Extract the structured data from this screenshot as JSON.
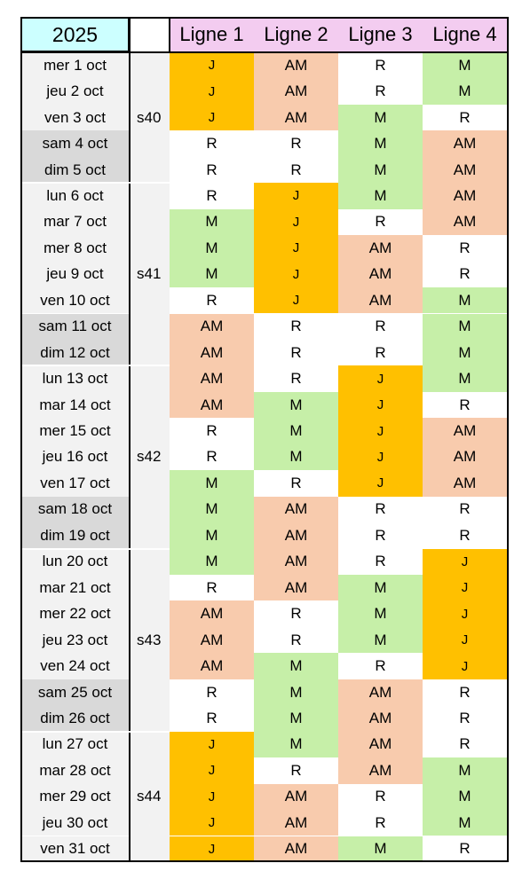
{
  "year": "2025",
  "lines": [
    "Ligne 1",
    "Ligne 2",
    "Ligne 3",
    "Ligne 4"
  ],
  "colors": {
    "J": "#ffc000",
    "AM": "#f8cbad",
    "M": "#c6efa8",
    "R": "#ffffff",
    "year_bg": "#ccffff",
    "line_header_bg": "#f3ccf0",
    "weekday_bg": "#f2f2f2",
    "weekend_bg": "#d9d9d9"
  },
  "weeks": [
    {
      "label": "s40",
      "start": 0,
      "end": 4
    },
    {
      "label": "s41",
      "start": 5,
      "end": 11
    },
    {
      "label": "s42",
      "start": 12,
      "end": 18
    },
    {
      "label": "s43",
      "start": 19,
      "end": 25
    },
    {
      "label": "s44",
      "start": 26,
      "end": 30
    }
  ],
  "rows": [
    {
      "date": "mer 1 oct",
      "weekend": false,
      "values": [
        "J",
        "AM",
        "R",
        "M"
      ]
    },
    {
      "date": "jeu 2 oct",
      "weekend": false,
      "values": [
        "J",
        "AM",
        "R",
        "M"
      ]
    },
    {
      "date": "ven 3 oct",
      "weekend": false,
      "values": [
        "J",
        "AM",
        "M",
        "R"
      ]
    },
    {
      "date": "sam 4 oct",
      "weekend": true,
      "values": [
        "R",
        "R",
        "M",
        "AM"
      ]
    },
    {
      "date": "dim 5 oct",
      "weekend": true,
      "values": [
        "R",
        "R",
        "M",
        "AM"
      ]
    },
    {
      "date": "lun 6 oct",
      "weekend": false,
      "values": [
        "R",
        "J",
        "M",
        "AM"
      ]
    },
    {
      "date": "mar 7 oct",
      "weekend": false,
      "values": [
        "M",
        "J",
        "R",
        "AM"
      ]
    },
    {
      "date": "mer 8 oct",
      "weekend": false,
      "values": [
        "M",
        "J",
        "AM",
        "R"
      ]
    },
    {
      "date": "jeu 9 oct",
      "weekend": false,
      "values": [
        "M",
        "J",
        "AM",
        "R"
      ]
    },
    {
      "date": "ven 10 oct",
      "weekend": false,
      "values": [
        "R",
        "J",
        "AM",
        "M"
      ]
    },
    {
      "date": "sam 11 oct",
      "weekend": true,
      "values": [
        "AM",
        "R",
        "R",
        "M"
      ]
    },
    {
      "date": "dim 12 oct",
      "weekend": true,
      "values": [
        "AM",
        "R",
        "R",
        "M"
      ]
    },
    {
      "date": "lun 13 oct",
      "weekend": false,
      "values": [
        "AM",
        "R",
        "J",
        "M"
      ]
    },
    {
      "date": "mar 14 oct",
      "weekend": false,
      "values": [
        "AM",
        "M",
        "J",
        "R"
      ]
    },
    {
      "date": "mer 15 oct",
      "weekend": false,
      "values": [
        "R",
        "M",
        "J",
        "AM"
      ]
    },
    {
      "date": "jeu 16 oct",
      "weekend": false,
      "values": [
        "R",
        "M",
        "J",
        "AM"
      ]
    },
    {
      "date": "ven 17 oct",
      "weekend": false,
      "values": [
        "M",
        "R",
        "J",
        "AM"
      ]
    },
    {
      "date": "sam 18 oct",
      "weekend": true,
      "values": [
        "M",
        "AM",
        "R",
        "R"
      ]
    },
    {
      "date": "dim 19 oct",
      "weekend": true,
      "values": [
        "M",
        "AM",
        "R",
        "R"
      ]
    },
    {
      "date": "lun 20 oct",
      "weekend": false,
      "values": [
        "M",
        "AM",
        "R",
        "J"
      ]
    },
    {
      "date": "mar 21 oct",
      "weekend": false,
      "values": [
        "R",
        "AM",
        "M",
        "J"
      ]
    },
    {
      "date": "mer 22 oct",
      "weekend": false,
      "values": [
        "AM",
        "R",
        "M",
        "J"
      ]
    },
    {
      "date": "jeu 23 oct",
      "weekend": false,
      "values": [
        "AM",
        "R",
        "M",
        "J"
      ]
    },
    {
      "date": "ven 24 oct",
      "weekend": false,
      "values": [
        "AM",
        "M",
        "R",
        "J"
      ]
    },
    {
      "date": "sam 25 oct",
      "weekend": true,
      "values": [
        "R",
        "M",
        "AM",
        "R"
      ]
    },
    {
      "date": "dim 26 oct",
      "weekend": true,
      "values": [
        "R",
        "M",
        "AM",
        "R"
      ]
    },
    {
      "date": "lun 27 oct",
      "weekend": false,
      "values": [
        "J",
        "M",
        "AM",
        "R"
      ]
    },
    {
      "date": "mar 28 oct",
      "weekend": false,
      "values": [
        "J",
        "R",
        "AM",
        "M"
      ]
    },
    {
      "date": "mer 29 oct",
      "weekend": false,
      "values": [
        "J",
        "AM",
        "R",
        "M"
      ]
    },
    {
      "date": "jeu 30 oct",
      "weekend": false,
      "values": [
        "J",
        "AM",
        "R",
        "M"
      ]
    },
    {
      "date": "ven 31 oct",
      "weekend": false,
      "values": [
        "J",
        "AM",
        "M",
        "R"
      ]
    }
  ]
}
